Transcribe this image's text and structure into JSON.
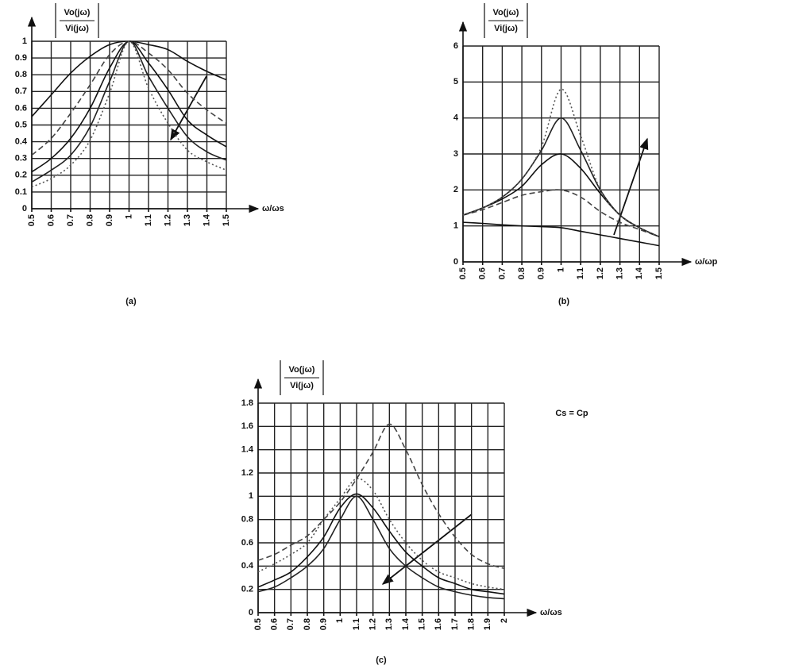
{
  "chart_data": [
    {
      "type": "line",
      "caption": "(a)",
      "ylabel": {
        "numerator": "Vo(jω)",
        "denominator": "Vi(jω)"
      },
      "xlabel": "ω/ωs",
      "x": [
        0.5,
        0.6,
        0.7,
        0.8,
        0.9,
        1,
        1.1,
        1.2,
        1.3,
        1.4,
        1.5
      ],
      "xlim": [
        0.5,
        1.5
      ],
      "xticks": [
        0.5,
        0.6,
        0.7,
        0.8,
        0.9,
        1,
        1.1,
        1.2,
        1.3,
        1.4,
        1.5
      ],
      "ylim": [
        0,
        1
      ],
      "yticks": [
        0,
        0.1,
        0.2,
        0.3,
        0.4,
        0.5,
        0.6,
        0.7,
        0.8,
        0.9,
        1
      ],
      "grid": true,
      "series": [
        {
          "color": "#111111",
          "style": "solid",
          "values": [
            0.55,
            0.68,
            0.81,
            0.91,
            0.98,
            1,
            0.98,
            0.95,
            0.88,
            0.82,
            0.77
          ]
        },
        {
          "color": "#444444",
          "style": "dashed",
          "values": [
            0.32,
            0.42,
            0.57,
            0.74,
            0.92,
            1,
            0.93,
            0.83,
            0.69,
            0.59,
            0.51
          ]
        },
        {
          "color": "#111111",
          "style": "solid",
          "values": [
            0.22,
            0.3,
            0.42,
            0.6,
            0.84,
            1,
            0.87,
            0.71,
            0.53,
            0.44,
            0.37
          ]
        },
        {
          "color": "#222222",
          "style": "solid",
          "values": [
            0.16,
            0.23,
            0.32,
            0.49,
            0.76,
            1,
            0.79,
            0.6,
            0.43,
            0.34,
            0.29
          ]
        },
        {
          "color": "#555555",
          "style": "dotted",
          "values": [
            0.13,
            0.18,
            0.26,
            0.41,
            0.69,
            1,
            0.72,
            0.51,
            0.35,
            0.28,
            0.23
          ]
        }
      ]
    },
    {
      "type": "line",
      "caption": "(b)",
      "ylabel": {
        "numerator": "Vo(jω)",
        "denominator": "Vi(jω)"
      },
      "xlabel": "ω/ωp",
      "x": [
        0.5,
        0.6,
        0.7,
        0.8,
        0.9,
        1,
        1.1,
        1.2,
        1.3,
        1.4,
        1.5
      ],
      "xlim": [
        0.5,
        1.5
      ],
      "xticks": [
        0.5,
        0.6,
        0.7,
        0.8,
        0.9,
        1,
        1.1,
        1.2,
        1.3,
        1.4,
        1.5
      ],
      "ylim": [
        0,
        6
      ],
      "yticks": [
        0,
        1,
        2,
        3,
        4,
        5,
        6
      ],
      "grid": true,
      "series": [
        {
          "color": "#111111",
          "style": "solid",
          "values": [
            1.1,
            1.07,
            1.03,
            1.0,
            0.98,
            0.95,
            0.85,
            0.75,
            0.65,
            0.55,
            0.45
          ]
        },
        {
          "color": "#444444",
          "style": "dashed",
          "values": [
            1.3,
            1.45,
            1.65,
            1.85,
            1.95,
            2.0,
            1.8,
            1.4,
            1.1,
            0.9,
            0.7
          ]
        },
        {
          "color": "#111111",
          "style": "solid",
          "values": [
            1.3,
            1.5,
            1.75,
            2.1,
            2.7,
            3.0,
            2.6,
            1.9,
            1.3,
            0.95,
            0.7
          ]
        },
        {
          "color": "#222222",
          "style": "solid",
          "values": [
            1.3,
            1.5,
            1.8,
            2.3,
            3.1,
            4.0,
            3.1,
            2.0,
            1.3,
            0.95,
            0.7
          ]
        },
        {
          "color": "#555555",
          "style": "dotted",
          "values": [
            1.3,
            1.5,
            1.8,
            2.3,
            3.2,
            4.8,
            3.5,
            2.0,
            1.3,
            0.95,
            0.7
          ]
        }
      ]
    },
    {
      "type": "line",
      "caption": "(c)",
      "ylabel": {
        "numerator": "Vo(jω)",
        "denominator": "Vi(jω)"
      },
      "xlabel": "ω/ωs",
      "annotation": "Cs = Cp",
      "x": [
        0.5,
        0.6,
        0.7,
        0.8,
        0.9,
        1,
        1.1,
        1.2,
        1.3,
        1.4,
        1.5,
        1.6,
        1.7,
        1.8,
        1.9,
        2
      ],
      "xlim": [
        0.5,
        2
      ],
      "xticks": [
        0.5,
        0.6,
        0.7,
        0.8,
        0.9,
        1,
        1.1,
        1.2,
        1.3,
        1.4,
        1.5,
        1.6,
        1.7,
        1.8,
        1.9,
        2
      ],
      "ylim": [
        0,
        1.8
      ],
      "yticks": [
        0,
        0.2,
        0.4,
        0.6,
        0.8,
        1,
        1.2,
        1.4,
        1.6,
        1.8
      ],
      "grid": true,
      "series": [
        {
          "color": "#444444",
          "style": "dashed",
          "values": [
            0.45,
            0.5,
            0.58,
            0.66,
            0.8,
            0.95,
            1.15,
            1.38,
            1.62,
            1.4,
            1.1,
            0.85,
            0.65,
            0.5,
            0.42,
            0.38
          ]
        },
        {
          "color": "#555555",
          "style": "dotted",
          "values": [
            0.35,
            0.42,
            0.5,
            0.6,
            0.8,
            0.98,
            1.15,
            1.05,
            0.8,
            0.6,
            0.45,
            0.35,
            0.3,
            0.25,
            0.22,
            0.2
          ]
        },
        {
          "color": "#111111",
          "style": "solid",
          "values": [
            0.22,
            0.28,
            0.35,
            0.48,
            0.65,
            0.9,
            1.02,
            0.9,
            0.7,
            0.52,
            0.4,
            0.3,
            0.25,
            0.2,
            0.18,
            0.16
          ]
        },
        {
          "color": "#222222",
          "style": "solid",
          "values": [
            0.18,
            0.22,
            0.3,
            0.4,
            0.55,
            0.8,
            1.0,
            0.8,
            0.55,
            0.4,
            0.3,
            0.22,
            0.18,
            0.15,
            0.13,
            0.12
          ]
        }
      ]
    }
  ]
}
